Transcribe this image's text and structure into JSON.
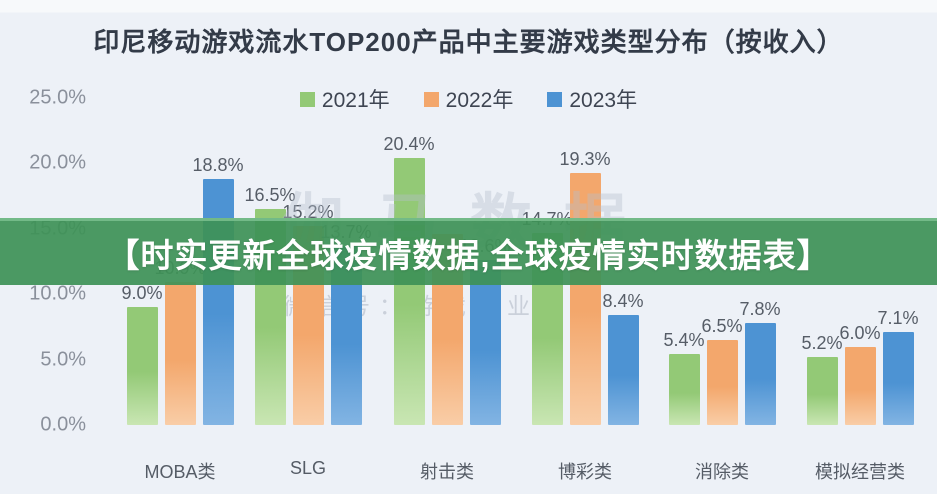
{
  "banner": {
    "text": "【时实更新全球疫情数据,全球疫情实时数据表】",
    "bg_color": "#3e9257"
  },
  "watermarks": {
    "large": "伽马数据",
    "small": "微信号：游戏产业报告"
  },
  "chart_data": {
    "type": "bar",
    "title": "印尼移动游戏流水TOP200产品中主要游戏类型分布（按收入）",
    "categories": [
      "MOBA类",
      "SLG",
      "射击类",
      "博彩类",
      "消除类",
      "模拟经营类"
    ],
    "series": [
      {
        "name": "2021年",
        "color": "#93c976",
        "color_light": "#c9e6b3",
        "values": [
          9.0,
          16.5,
          20.4,
          14.7,
          5.4,
          5.2
        ],
        "labels": [
          "9.0%",
          "16.5%",
          "20.4%",
          "14.7%",
          "5.4%",
          "5.2%"
        ]
      },
      {
        "name": "2022年",
        "color": "#f3a76c",
        "color_light": "#f9cda7",
        "values": [
          10.9,
          15.2,
          14.6,
          19.3,
          6.5,
          6.0
        ],
        "labels": [
          "10.9%",
          "15.2%",
          "",
          "19.3%",
          "6.5%",
          "6.0%"
        ]
      },
      {
        "name": "2023年",
        "color": "#4d93d3",
        "color_light": "#82b4e3",
        "values": [
          18.8,
          13.7,
          12.6,
          8.4,
          7.8,
          7.1
        ],
        "labels": [
          "18.8%",
          "13.7%",
          "12.6%",
          "8.4%",
          "7.8%",
          "7.1%"
        ]
      }
    ],
    "y_ticks": [
      "25.0%",
      "20.0%",
      "15.0%",
      "10.0%",
      "5.0%",
      "0.0%"
    ],
    "ylim": [
      0,
      25
    ],
    "grid": false,
    "legend_position": "top"
  }
}
